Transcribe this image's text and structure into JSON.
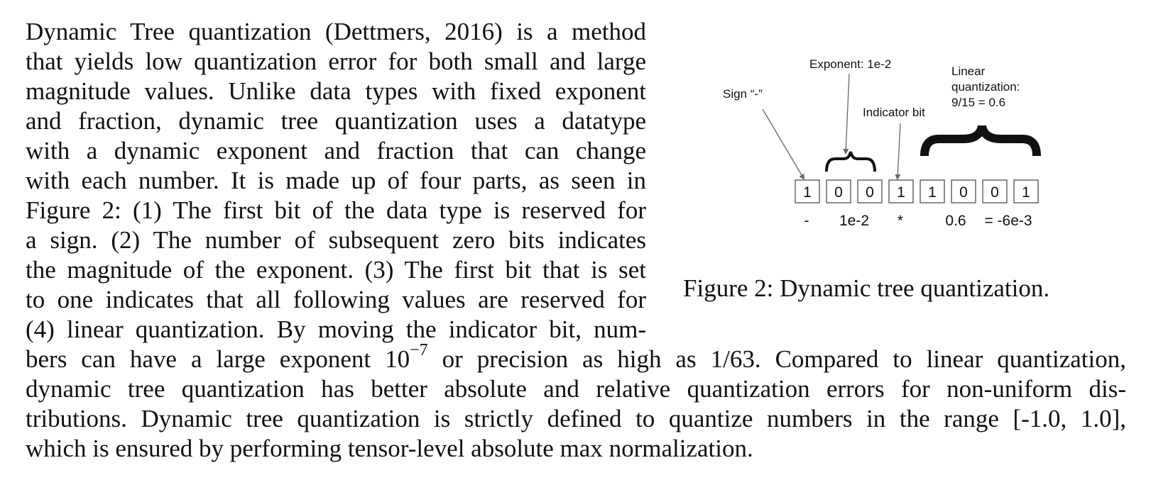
{
  "paragraph": {
    "lines": [
      "Dynamic Tree quantization (Dettmers, 2016) is a method",
      "that yields low quantization error for both small and large",
      "magnitude values. Unlike data types with fixed exponent",
      "and fraction, dynamic tree quantization uses a datatype",
      "with a dynamic exponent and fraction that can change",
      "with each number. It is made up of four parts, as seen in",
      "Figure 2: (1) The first bit of the data type is reserved for",
      "a sign. (2) The number of subsequent zero bits indicates",
      "the magnitude of the exponent. (3) The first bit that is set",
      "to one indicates that all following values are reserved for",
      "(4) linear quantization. By moving the indicator bit, num-"
    ],
    "math_line": {
      "before": "bers can have a large exponent ",
      "base": "10",
      "exponent": "−7",
      "middle": " or precision as high as ",
      "fraction": "1/63",
      "after": ". Compared to linear quantization,"
    },
    "wide_lines": [
      "dynamic tree quantization has better absolute and relative quantization errors for non-uniform dis-",
      "tributions. Dynamic tree quantization is strictly defined to quantize numbers in the range [-1.0, 1.0],",
      "which is ensured by performing tensor-level absolute max normalization."
    ]
  },
  "figure": {
    "labels": {
      "sign": "Sign “-”",
      "exponent": "Exponent: 1e-2",
      "indicator": "Indicator bit",
      "linear_1": "Linear",
      "linear_2": "quantization:",
      "linear_3": "9/15 = 0.6"
    },
    "bits": [
      "1",
      "0",
      "0",
      "1",
      "1",
      "0",
      "0",
      "1"
    ],
    "values": {
      "sign": "-",
      "exponent": "1e-2",
      "indicator": "*",
      "fraction": "0.6",
      "result": "= -6e-3"
    },
    "caption": "Figure 2: Dynamic tree quantization."
  }
}
